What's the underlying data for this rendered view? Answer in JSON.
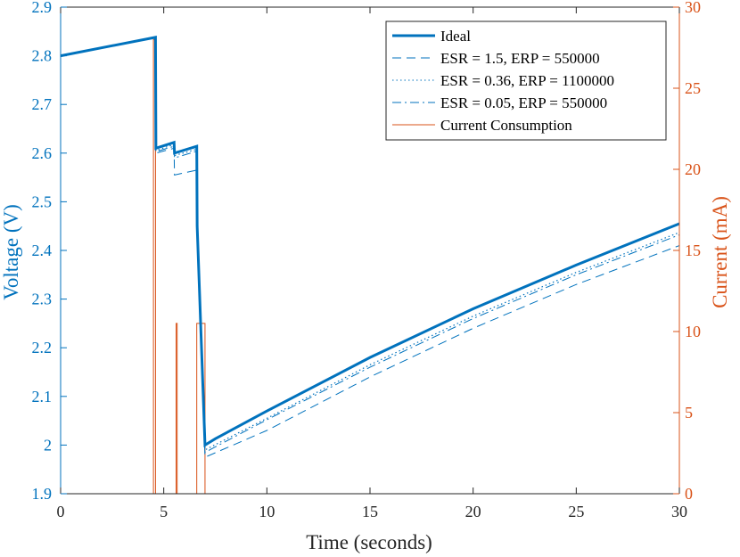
{
  "colors": {
    "voltage": "#0072BD",
    "current": "#D95319",
    "axis": "#262626"
  },
  "chart_data": {
    "type": "line",
    "title": "",
    "xlabel": "Time (seconds)",
    "ylabel_left": "Voltage (V)",
    "ylabel_right": "Current (mA)",
    "xlim": [
      0,
      30
    ],
    "ylim_left": [
      1.9,
      2.9
    ],
    "ylim_right": [
      0,
      30
    ],
    "grid": false,
    "legend_placement": "top-right",
    "x_ticks": [
      "0",
      "5",
      "10",
      "15",
      "20",
      "25",
      "30"
    ],
    "y_left_ticks": [
      "1.9",
      "2",
      "2.1",
      "2.2",
      "2.3",
      "2.4",
      "2.5",
      "2.6",
      "2.7",
      "2.8",
      "2.9"
    ],
    "y_right_ticks": [
      "0",
      "5",
      "10",
      "15",
      "20",
      "25",
      "30"
    ],
    "series": [
      {
        "name": "Ideal",
        "axis": "left",
        "style": "solid-thick",
        "points": [
          [
            0,
            2.8
          ],
          [
            4.6,
            2.838
          ],
          [
            4.62,
            2.61
          ],
          [
            5.5,
            2.622
          ],
          [
            5.52,
            2.6
          ],
          [
            6.6,
            2.614
          ],
          [
            6.62,
            2.45
          ],
          [
            7.0,
            2.0
          ],
          [
            7.5,
            2.013
          ],
          [
            10,
            2.07
          ],
          [
            15,
            2.18
          ],
          [
            20,
            2.28
          ],
          [
            25,
            2.37
          ],
          [
            30,
            2.455
          ]
        ]
      },
      {
        "name": "ESR = 1.5, ERP = 550000",
        "axis": "left",
        "style": "dashed",
        "points": [
          [
            0,
            2.8
          ],
          [
            4.6,
            2.838
          ],
          [
            4.62,
            2.6
          ],
          [
            5.5,
            2.61
          ],
          [
            5.52,
            2.555
          ],
          [
            6.6,
            2.565
          ],
          [
            6.62,
            2.45
          ],
          [
            7.0,
            1.975
          ],
          [
            10,
            2.03
          ],
          [
            15,
            2.14
          ],
          [
            20,
            2.24
          ],
          [
            25,
            2.33
          ],
          [
            30,
            2.41
          ]
        ]
      },
      {
        "name": "ESR = 0.36, ERP = 1100000",
        "axis": "left",
        "style": "dotted",
        "points": [
          [
            0,
            2.8
          ],
          [
            4.6,
            2.838
          ],
          [
            4.62,
            2.605
          ],
          [
            5.5,
            2.618
          ],
          [
            5.52,
            2.595
          ],
          [
            6.6,
            2.608
          ],
          [
            6.62,
            2.45
          ],
          [
            7.0,
            1.99
          ],
          [
            10,
            2.055
          ],
          [
            15,
            2.165
          ],
          [
            20,
            2.265
          ],
          [
            25,
            2.355
          ],
          [
            30,
            2.437
          ]
        ]
      },
      {
        "name": "ESR = 0.05, ERP = 550000",
        "axis": "left",
        "style": "dashdot",
        "points": [
          [
            0,
            2.8
          ],
          [
            4.6,
            2.838
          ],
          [
            4.62,
            2.603
          ],
          [
            5.5,
            2.614
          ],
          [
            5.52,
            2.59
          ],
          [
            6.6,
            2.604
          ],
          [
            6.62,
            2.45
          ],
          [
            7.0,
            1.985
          ],
          [
            10,
            2.052
          ],
          [
            15,
            2.16
          ],
          [
            20,
            2.26
          ],
          [
            25,
            2.35
          ],
          [
            30,
            2.432
          ]
        ]
      },
      {
        "name": "Current Consumption",
        "axis": "right",
        "style": "solid-thin",
        "points": [
          [
            0,
            0
          ],
          [
            4.5,
            0
          ],
          [
            4.5,
            28
          ],
          [
            4.6,
            28
          ],
          [
            4.6,
            0
          ],
          [
            5.6,
            0
          ],
          [
            5.6,
            10.5
          ],
          [
            5.65,
            10.5
          ],
          [
            5.65,
            0
          ],
          [
            6.6,
            0
          ],
          [
            6.6,
            10.5
          ],
          [
            7.0,
            10.5
          ],
          [
            7.0,
            0
          ],
          [
            30,
            0
          ]
        ]
      }
    ]
  }
}
